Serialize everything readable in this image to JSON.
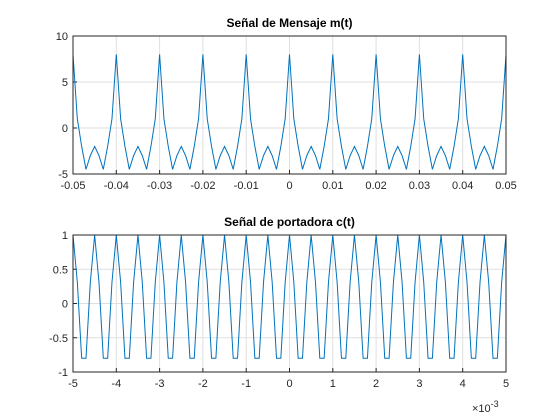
{
  "chart_data": [
    {
      "type": "line",
      "title": "Señal de Mensaje m(t)",
      "x": [
        -0.05,
        -0.049,
        -0.048,
        -0.047,
        -0.046,
        -0.045,
        -0.044,
        -0.043,
        -0.042,
        -0.041,
        -0.04,
        -0.039,
        -0.038,
        -0.037,
        -0.036,
        -0.035,
        -0.034,
        -0.033,
        -0.032,
        -0.031,
        -0.03,
        -0.029,
        -0.028,
        -0.027,
        -0.026,
        -0.025,
        -0.024,
        -0.023,
        -0.022,
        -0.021,
        -0.02,
        -0.019,
        -0.018,
        -0.017,
        -0.016,
        -0.015,
        -0.014,
        -0.013,
        -0.012,
        -0.011,
        -0.01,
        -0.009,
        -0.008,
        -0.007,
        -0.006,
        -0.005,
        -0.004,
        -0.003,
        -0.002,
        -0.001,
        0,
        0.001,
        0.002,
        0.003,
        0.004,
        0.005,
        0.006,
        0.007,
        0.008,
        0.009,
        0.01,
        0.011,
        0.012,
        0.013,
        0.014,
        0.015,
        0.016,
        0.017,
        0.018,
        0.019,
        0.02,
        0.021,
        0.022,
        0.023,
        0.024,
        0.025,
        0.026,
        0.027,
        0.028,
        0.029,
        0.03,
        0.031,
        0.032,
        0.033,
        0.034,
        0.035,
        0.036,
        0.037,
        0.038,
        0.039,
        0.04,
        0.041,
        0.042,
        0.043,
        0.044,
        0.045,
        0.046,
        0.047,
        0.048,
        0.049,
        0.05
      ],
      "series": [
        {
          "color": "#0072bd",
          "values": [
            8,
            1,
            -2,
            -4.5,
            -3,
            -2,
            -3,
            -4.5,
            -2,
            1,
            8,
            1,
            -2,
            -4.5,
            -3,
            -2,
            -3,
            -4.5,
            -2,
            1,
            8,
            1,
            -2,
            -4.5,
            -3,
            -2,
            -3,
            -4.5,
            -2,
            1,
            8,
            1,
            -2,
            -4.5,
            -3,
            -2,
            -3,
            -4.5,
            -2,
            1,
            8,
            1,
            -2,
            -4.5,
            -3,
            -2,
            -3,
            -4.5,
            -2,
            1,
            8,
            1,
            -2,
            -4.5,
            -3,
            -2,
            -3,
            -4.5,
            -2,
            1,
            8,
            1,
            -2,
            -4.5,
            -3,
            -2,
            -3,
            -4.5,
            -2,
            1,
            8,
            1,
            -2,
            -4.5,
            -3,
            -2,
            -3,
            -4.5,
            -2,
            1,
            8,
            1,
            -2,
            -4.5,
            -3,
            -2,
            -3,
            -4.5,
            -2,
            1,
            8,
            1,
            -2,
            -4.5,
            -3,
            -2,
            -3,
            -4.5,
            -2,
            1,
            8
          ]
        }
      ],
      "xlim": [
        -0.05,
        0.05
      ],
      "xticks": [
        -0.05,
        -0.04,
        -0.03,
        -0.02,
        -0.01,
        0,
        0.01,
        0.02,
        0.03,
        0.04,
        0.05
      ],
      "ylim": [
        -5,
        10
      ],
      "yticks": [
        -5,
        0,
        5,
        10
      ],
      "grid": true
    },
    {
      "type": "line",
      "title": "Señal de portadora c(t)",
      "x": [
        -0.005,
        -0.0049,
        -0.0048,
        -0.0047,
        -0.0046,
        -0.0045,
        -0.0044,
        -0.0043,
        -0.0042,
        -0.0041,
        -0.004,
        -0.0039,
        -0.0038,
        -0.0037,
        -0.0036,
        -0.0035,
        -0.0034,
        -0.0033,
        -0.0032,
        -0.0031,
        -0.003,
        -0.0029,
        -0.0028,
        -0.0027,
        -0.0026,
        -0.0025,
        -0.0024,
        -0.0023,
        -0.0022,
        -0.0021,
        -0.002,
        -0.0019,
        -0.0018,
        -0.0017,
        -0.0016,
        -0.0015,
        -0.0014,
        -0.0013,
        -0.0012,
        -0.0011,
        -0.001,
        -0.0009,
        -0.0008,
        -0.0007,
        -0.0006,
        -0.0005,
        -0.0004,
        -0.0003,
        -0.0002,
        -0.0001,
        0,
        0.0001,
        0.0002,
        0.0003,
        0.0004,
        0.0005,
        0.0006,
        0.0007,
        0.0008,
        0.0009,
        0.001,
        0.0011,
        0.0012,
        0.0013,
        0.0014,
        0.0015,
        0.0016,
        0.0017,
        0.0018,
        0.0019,
        0.002,
        0.0021,
        0.0022,
        0.0023,
        0.0024,
        0.0025,
        0.0026,
        0.0027,
        0.0028,
        0.0029,
        0.003,
        0.0031,
        0.0032,
        0.0033,
        0.0034,
        0.0035,
        0.0036,
        0.0037,
        0.0038,
        0.0039,
        0.004,
        0.0041,
        0.0042,
        0.0043,
        0.0044,
        0.0045,
        0.0046,
        0.0047,
        0.0048,
        0.0049,
        0.005
      ],
      "series": [
        {
          "color": "#0072bd",
          "values": [
            1,
            0.31,
            -0.8,
            -0.8,
            0.31,
            1,
            0.31,
            -0.8,
            -0.8,
            0.31,
            1,
            0.31,
            -0.8,
            -0.8,
            0.31,
            1,
            0.31,
            -0.8,
            -0.8,
            0.31,
            1,
            0.31,
            -0.8,
            -0.8,
            0.31,
            1,
            0.31,
            -0.8,
            -0.8,
            0.31,
            1,
            0.31,
            -0.8,
            -0.8,
            0.31,
            1,
            0.31,
            -0.8,
            -0.8,
            0.31,
            1,
            0.31,
            -0.8,
            -0.8,
            0.31,
            1,
            0.31,
            -0.8,
            -0.8,
            0.31,
            1,
            0.31,
            -0.8,
            -0.8,
            0.31,
            1,
            0.31,
            -0.8,
            -0.8,
            0.31,
            1,
            0.31,
            -0.8,
            -0.8,
            0.31,
            1,
            0.31,
            -0.8,
            -0.8,
            0.31,
            1,
            0.31,
            -0.8,
            -0.8,
            0.31,
            1,
            0.31,
            -0.8,
            -0.8,
            0.31,
            1,
            0.31,
            -0.8,
            -0.8,
            0.31,
            1,
            0.31,
            -0.8,
            -0.8,
            0.31,
            1,
            0.31,
            -0.8,
            -0.8,
            0.31,
            1,
            0.31,
            -0.8,
            -0.8,
            0.31,
            1
          ]
        }
      ],
      "xlim": [
        -0.005,
        0.005
      ],
      "xticks": [
        {
          "value": -0.005,
          "label": "-5"
        },
        {
          "value": -0.004,
          "label": "-4"
        },
        {
          "value": -0.003,
          "label": "-3"
        },
        {
          "value": -0.002,
          "label": "-2"
        },
        {
          "value": -0.001,
          "label": "-1"
        },
        {
          "value": 0,
          "label": "0"
        },
        {
          "value": 0.001,
          "label": "1"
        },
        {
          "value": 0.002,
          "label": "2"
        },
        {
          "value": 0.003,
          "label": "3"
        },
        {
          "value": 0.004,
          "label": "4"
        },
        {
          "value": 0.005,
          "label": "5"
        }
      ],
      "x_multiplier": {
        "base": "×10",
        "exponent": "-3"
      },
      "ylim": [
        -1,
        1
      ],
      "yticks": [
        -1,
        -0.5,
        0,
        0.5,
        1
      ],
      "grid": true
    }
  ]
}
